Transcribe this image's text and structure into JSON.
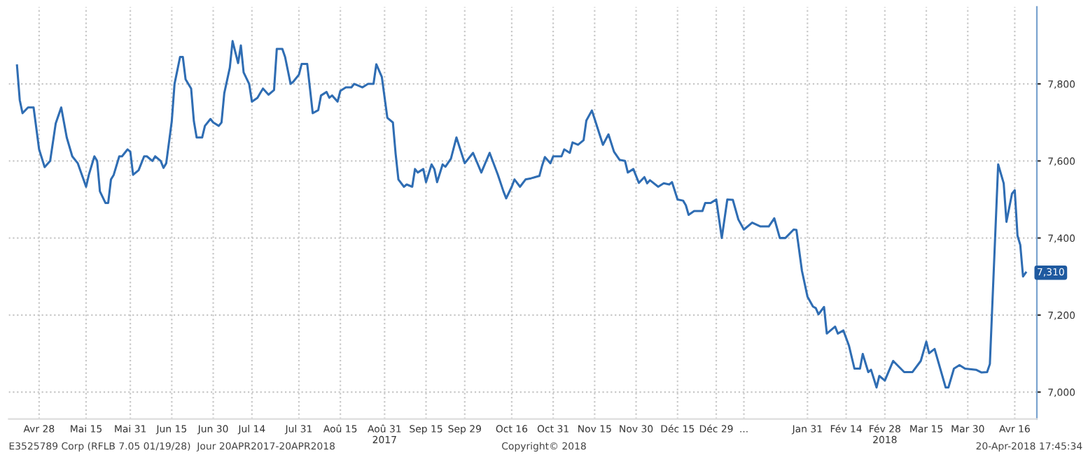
{
  "chart_data": {
    "type": "line",
    "x": [
      "2017-04-20",
      "2017-04-21",
      "2017-04-22",
      "2017-04-24",
      "2017-04-26",
      "2017-04-28",
      "2017-04-30",
      "2017-05-02",
      "2017-05-04",
      "2017-05-06",
      "2017-05-08",
      "2017-05-10",
      "2017-05-12",
      "2017-05-15",
      "2017-05-16",
      "2017-05-18",
      "2017-05-19",
      "2017-05-20",
      "2017-05-22",
      "2017-05-23",
      "2017-05-24",
      "2017-05-25",
      "2017-05-27",
      "2017-05-28",
      "2017-05-30",
      "2017-05-31",
      "2017-06-01",
      "2017-06-03",
      "2017-06-05",
      "2017-06-06",
      "2017-06-08",
      "2017-06-09",
      "2017-06-11",
      "2017-06-12",
      "2017-06-13",
      "2017-06-15",
      "2017-06-16",
      "2017-06-18",
      "2017-06-19",
      "2017-06-20",
      "2017-06-22",
      "2017-06-23",
      "2017-06-24",
      "2017-06-26",
      "2017-06-27",
      "2017-06-29",
      "2017-06-30",
      "2017-07-02",
      "2017-07-03",
      "2017-07-04",
      "2017-07-06",
      "2017-07-07",
      "2017-07-09",
      "2017-07-10",
      "2017-07-11",
      "2017-07-13",
      "2017-07-14",
      "2017-07-16",
      "2017-07-17",
      "2017-07-18",
      "2017-07-20",
      "2017-07-22",
      "2017-07-23",
      "2017-07-25",
      "2017-07-26",
      "2017-07-28",
      "2017-07-29",
      "2017-07-31",
      "2017-08-01",
      "2017-08-03",
      "2017-08-04",
      "2017-08-05",
      "2017-08-07",
      "2017-08-08",
      "2017-08-10",
      "2017-08-11",
      "2017-08-12",
      "2017-08-14",
      "2017-08-15",
      "2017-08-17",
      "2017-08-19",
      "2017-08-20",
      "2017-08-23",
      "2017-08-25",
      "2017-08-27",
      "2017-08-28",
      "2017-08-30",
      "2017-09-01",
      "2017-09-03",
      "2017-09-04",
      "2017-09-05",
      "2017-09-07",
      "2017-09-08",
      "2017-09-10",
      "2017-09-11",
      "2017-09-12",
      "2017-09-14",
      "2017-09-15",
      "2017-09-17",
      "2017-09-18",
      "2017-09-19",
      "2017-09-21",
      "2017-09-22",
      "2017-09-24",
      "2017-09-26",
      "2017-09-29",
      "2017-10-02",
      "2017-10-05",
      "2017-10-08",
      "2017-10-11",
      "2017-10-13",
      "2017-10-14",
      "2017-10-16",
      "2017-10-17",
      "2017-10-19",
      "2017-10-21",
      "2017-10-23",
      "2017-10-26",
      "2017-10-27",
      "2017-10-28",
      "2017-10-30",
      "2017-10-31",
      "2017-11-03",
      "2017-11-04",
      "2017-11-06",
      "2017-11-07",
      "2017-11-09",
      "2017-11-11",
      "2017-11-12",
      "2017-11-14",
      "2017-11-15",
      "2017-11-18",
      "2017-11-20",
      "2017-11-22",
      "2017-11-24",
      "2017-11-26",
      "2017-11-27",
      "2017-11-29",
      "2017-12-01",
      "2017-12-03",
      "2017-12-04",
      "2017-12-05",
      "2017-12-08",
      "2017-12-10",
      "2017-12-12",
      "2017-12-13",
      "2017-12-15",
      "2017-12-17",
      "2017-12-18",
      "2017-12-19",
      "2017-12-21",
      "2017-12-24",
      "2017-12-25",
      "2017-12-27",
      "2017-12-29",
      "2017-12-31",
      "2018-01-02",
      "2018-01-04",
      "2018-01-06",
      "2018-01-08",
      "2018-01-11",
      "2018-01-14",
      "2018-01-17",
      "2018-01-19",
      "2018-01-21",
      "2018-01-23",
      "2018-01-26",
      "2018-01-27",
      "2018-01-29",
      "2018-01-31",
      "2018-02-02",
      "2018-02-03",
      "2018-02-04",
      "2018-02-06",
      "2018-02-07",
      "2018-02-10",
      "2018-02-11",
      "2018-02-13",
      "2018-02-15",
      "2018-02-17",
      "2018-02-19",
      "2018-02-20",
      "2018-02-22",
      "2018-02-23",
      "2018-02-25",
      "2018-02-26",
      "2018-02-28",
      "2018-03-03",
      "2018-03-07",
      "2018-03-10",
      "2018-03-13",
      "2018-03-15",
      "2018-03-16",
      "2018-03-18",
      "2018-03-22",
      "2018-03-23",
      "2018-03-25",
      "2018-03-27",
      "2018-03-29",
      "2018-04-02",
      "2018-04-04",
      "2018-04-06",
      "2018-04-07",
      "2018-04-10",
      "2018-04-12",
      "2018-04-13",
      "2018-04-15",
      "2018-04-16",
      "2018-04-17",
      "2018-04-18",
      "2018-04-19",
      "2018-04-20"
    ],
    "series": [
      {
        "color": "#2f6db3",
        "values": [
          7848,
          7758,
          7724,
          7739,
          7739,
          7630,
          7584,
          7600,
          7697,
          7739,
          7661,
          7612,
          7594,
          7533,
          7564,
          7612,
          7600,
          7521,
          7491,
          7491,
          7552,
          7564,
          7612,
          7612,
          7630,
          7624,
          7564,
          7576,
          7612,
          7612,
          7600,
          7612,
          7600,
          7582,
          7594,
          7703,
          7800,
          7870,
          7870,
          7812,
          7788,
          7703,
          7661,
          7661,
          7691,
          7709,
          7700,
          7691,
          7700,
          7776,
          7842,
          7911,
          7854,
          7900,
          7830,
          7800,
          7754,
          7764,
          7776,
          7788,
          7772,
          7784,
          7891,
          7891,
          7870,
          7800,
          7806,
          7824,
          7852,
          7852,
          7788,
          7724,
          7732,
          7770,
          7779,
          7764,
          7770,
          7754,
          7782,
          7791,
          7791,
          7800,
          7791,
          7800,
          7800,
          7851,
          7818,
          7712,
          7700,
          7618,
          7552,
          7533,
          7539,
          7533,
          7579,
          7570,
          7579,
          7545,
          7591,
          7579,
          7545,
          7591,
          7585,
          7606,
          7661,
          7594,
          7621,
          7570,
          7621,
          7564,
          7521,
          7503,
          7533,
          7552,
          7533,
          7552,
          7555,
          7561,
          7588,
          7610,
          7594,
          7612,
          7612,
          7630,
          7621,
          7648,
          7642,
          7654,
          7705,
          7731,
          7709,
          7642,
          7669,
          7624,
          7603,
          7600,
          7570,
          7579,
          7543,
          7558,
          7542,
          7550,
          7533,
          7542,
          7539,
          7545,
          7500,
          7497,
          7485,
          7460,
          7470,
          7470,
          7491,
          7491,
          7500,
          7400,
          7500,
          7499,
          7448,
          7422,
          7440,
          7430,
          7430,
          7451,
          7400,
          7400,
          7422,
          7421,
          7315,
          7248,
          7222,
          7218,
          7202,
          7221,
          7152,
          7170,
          7152,
          7160,
          7121,
          7061,
          7061,
          7099,
          7052,
          7058,
          7012,
          7042,
          7030,
          7081,
          7052,
          7052,
          7081,
          7131,
          7101,
          7112,
          7012,
          7012,
          7061,
          7070,
          7061,
          7058,
          7051,
          7052,
          7073,
          7591,
          7542,
          7442,
          7515,
          7524,
          7406,
          7382,
          7300,
          7310
        ]
      }
    ],
    "xlim": [
      "2017-04-17",
      "2018-04-24"
    ],
    "xticks": [
      {
        "value": "2017-04-28",
        "label": "Avr 28"
      },
      {
        "value": "2017-05-15",
        "label": "Mai 15"
      },
      {
        "value": "2017-05-31",
        "label": "Mai 31"
      },
      {
        "value": "2017-06-15",
        "label": "Jun 15"
      },
      {
        "value": "2017-06-30",
        "label": "Jun 30"
      },
      {
        "value": "2017-07-14",
        "label": "Jul 14"
      },
      {
        "value": "2017-07-31",
        "label": "Jul 31"
      },
      {
        "value": "2017-08-15",
        "label": "Aoû 15"
      },
      {
        "value": "2017-08-31",
        "label": "Aoû 31\n2017"
      },
      {
        "value": "2017-09-15",
        "label": "Sep 15"
      },
      {
        "value": "2017-09-29",
        "label": "Sep 29"
      },
      {
        "value": "2017-10-16",
        "label": "Oct 16"
      },
      {
        "value": "2017-10-31",
        "label": "Oct 31"
      },
      {
        "value": "2017-11-15",
        "label": "Nov 15"
      },
      {
        "value": "2017-11-30",
        "label": "Nov 30"
      },
      {
        "value": "2017-12-15",
        "label": "Déc 15"
      },
      {
        "value": "2017-12-29",
        "label": "Déc 29"
      },
      {
        "value": "2018-01-08",
        "label": "..."
      },
      {
        "value": "2018-01-31",
        "label": "Jan 31"
      },
      {
        "value": "2018-02-14",
        "label": "Fév 14"
      },
      {
        "value": "2018-02-28",
        "label": "Fév 28\n2018"
      },
      {
        "value": "2018-03-15",
        "label": "Mar 15"
      },
      {
        "value": "2018-03-30",
        "label": "Mar 30"
      },
      {
        "value": "2018-04-16",
        "label": "Avr 16"
      }
    ],
    "ylim": [
      6930,
      8000
    ],
    "yticks": [
      {
        "value": 7000,
        "label": "7,000"
      },
      {
        "value": 7200,
        "label": "7,200"
      },
      {
        "value": 7400,
        "label": "7,400"
      },
      {
        "value": 7600,
        "label": "7,600"
      },
      {
        "value": 7800,
        "label": "7,800"
      }
    ],
    "grid": true,
    "marker": "none",
    "line_style": "solid",
    "annotations": [
      {
        "text": "7,310",
        "x": "2018-04-20",
        "y": 7310
      },
      "E3525789 Corp (RFLB 7.05 01/19/28)  Jour 20APR2017-20APR2018",
      "Copyright© 2018",
      "20-Apr-2018 17:45:34"
    ]
  }
}
